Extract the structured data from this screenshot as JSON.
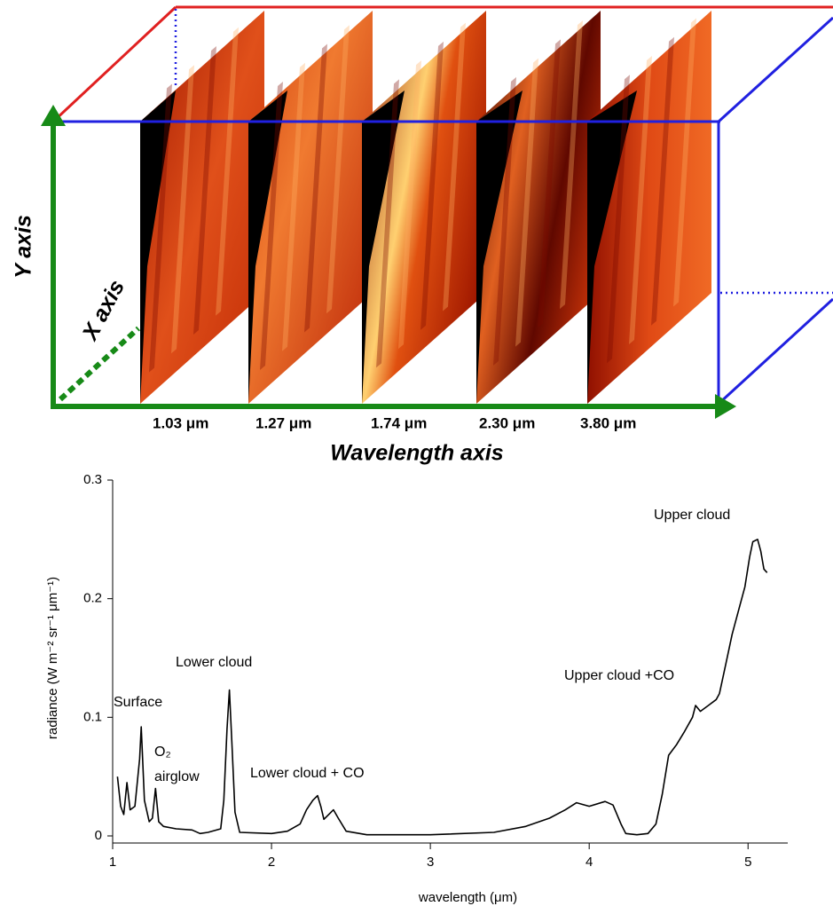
{
  "diagram": {
    "y_axis_label": "Y axis",
    "x_axis_label": "X axis",
    "wavelength_axis_label": "Wavelength axis",
    "slices": [
      "1.03 μm",
      "1.27 μm",
      "1.74 μm",
      "2.30 μm",
      "3.80 μm"
    ]
  },
  "chart_data": {
    "type": "line",
    "xlabel": "wavelength (μm)",
    "ylabel": "radiance (W m⁻² sr⁻¹ μm⁻¹)",
    "annotations": [
      "Surface",
      "O₂",
      "airglow",
      "Lower cloud",
      "Lower cloud + CO",
      "Upper cloud +CO",
      "Upper cloud"
    ],
    "color": "#000000",
    "x": [
      1.03,
      1.05,
      1.07,
      1.09,
      1.11,
      1.14,
      1.17,
      1.18,
      1.2,
      1.23,
      1.25,
      1.27,
      1.29,
      1.32,
      1.4,
      1.5,
      1.55,
      1.6,
      1.68,
      1.7,
      1.72,
      1.735,
      1.75,
      1.77,
      1.8,
      2.0,
      2.1,
      2.18,
      2.22,
      2.26,
      2.29,
      2.31,
      2.33,
      2.36,
      2.39,
      2.42,
      2.47,
      2.6,
      3.0,
      3.4,
      3.6,
      3.75,
      3.85,
      3.92,
      4.0,
      4.1,
      4.15,
      4.2,
      4.23,
      4.3,
      4.37,
      4.42,
      4.46,
      4.5,
      4.55,
      4.6,
      4.65,
      4.67,
      4.7,
      4.75,
      4.8,
      4.82,
      4.86,
      4.9,
      4.95,
      4.98,
      5.01,
      5.03,
      5.06,
      5.08,
      5.1,
      5.12
    ],
    "values": [
      0.05,
      0.025,
      0.018,
      0.045,
      0.022,
      0.025,
      0.065,
      0.092,
      0.03,
      0.012,
      0.015,
      0.04,
      0.012,
      0.008,
      0.006,
      0.005,
      0.002,
      0.003,
      0.006,
      0.03,
      0.09,
      0.123,
      0.08,
      0.02,
      0.003,
      0.002,
      0.004,
      0.01,
      0.022,
      0.03,
      0.034,
      0.025,
      0.014,
      0.018,
      0.022,
      0.015,
      0.004,
      0.001,
      0.001,
      0.003,
      0.008,
      0.015,
      0.022,
      0.028,
      0.025,
      0.029,
      0.026,
      0.01,
      0.002,
      0.001,
      0.002,
      0.01,
      0.035,
      0.068,
      0.077,
      0.088,
      0.1,
      0.11,
      0.105,
      0.11,
      0.115,
      0.12,
      0.145,
      0.17,
      0.195,
      0.21,
      0.235,
      0.248,
      0.25,
      0.24,
      0.225,
      0.222
    ],
    "xlim": [
      1,
      5.25
    ],
    "ylim": [
      0,
      0.3
    ],
    "xticks": [
      1,
      2,
      3,
      4,
      5
    ],
    "yticks": [
      0,
      0.1,
      0.2,
      0.3
    ]
  }
}
